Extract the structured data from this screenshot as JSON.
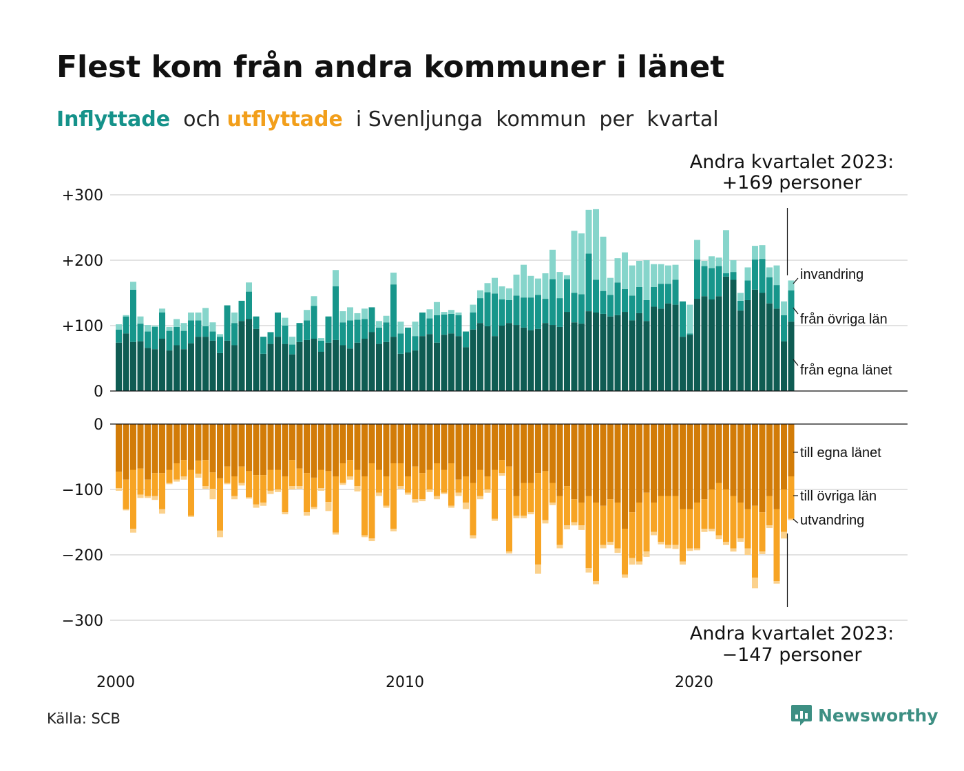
{
  "title": "Flest kom från andra kommuner i länet",
  "subtitle": {
    "part1": "Inflyttade",
    "part2": "  och ",
    "part3": "utflyttade",
    "part4": "  i Svenljunga  kommun  per  kvartal"
  },
  "colors": {
    "in_egna": "#0f5c53",
    "in_ovriga": "#17968b",
    "in_invandring": "#86d5cb",
    "out_egna": "#d27c08",
    "out_ovriga": "#f7a424",
    "out_utvandring": "#fbd18c",
    "brand": "#3d8f83"
  },
  "source": "Källa: SCB",
  "brand": {
    "name": "Newsworthy",
    "icon": "newsworthy-logo-icon"
  },
  "chart_data": {
    "type": "bar",
    "x_start": "2000 Q1",
    "x_end": "2023 Q2",
    "x_ticks": [
      "2000",
      "2010",
      "2020"
    ],
    "y_ticks_top": [
      "+300",
      "+200",
      "+100",
      "0"
    ],
    "y_ticks_bottom": [
      "0",
      "−100",
      "−200",
      "−300"
    ],
    "ylim_top": [
      0,
      300
    ],
    "ylim_bottom": [
      -300,
      0
    ],
    "grid": true,
    "legend_top": [
      "invandring",
      "från övriga län",
      "från egna länet"
    ],
    "legend_bottom": [
      "till egna länet",
      "till övriga län",
      "utvandring"
    ],
    "annotation_top": {
      "line1": "Andra kvartalet 2023:",
      "line2": "+169 personer"
    },
    "annotation_bottom": {
      "line1": "Andra kvartalet 2023:",
      "line2": "−147 personer"
    },
    "inflyttade": {
      "egna_lanet": [
        74,
        88,
        75,
        76,
        66,
        64,
        80,
        62,
        70,
        64,
        73,
        83,
        83,
        77,
        58,
        77,
        70,
        107,
        110,
        95,
        57,
        72,
        83,
        72,
        56,
        75,
        78,
        80,
        60,
        74,
        78,
        70,
        65,
        74,
        80,
        90,
        72,
        75,
        83,
        57,
        59,
        62,
        84,
        87,
        74,
        86,
        88,
        84,
        67,
        94,
        104,
        99,
        84,
        100,
        104,
        101,
        97,
        93,
        95,
        104,
        101,
        98,
        121,
        105,
        103,
        122,
        120,
        118,
        114,
        116,
        121,
        108,
        119,
        107,
        129,
        126,
        134,
        132,
        83,
        86,
        141,
        145,
        140,
        145,
        175,
        170,
        123,
        139,
        155,
        150,
        134,
        126,
        76,
        106
      ],
      "ovriga_lan": [
        20,
        26,
        80,
        27,
        25,
        34,
        40,
        30,
        28,
        28,
        35,
        25,
        16,
        14,
        25,
        54,
        34,
        31,
        42,
        19,
        26,
        18,
        37,
        28,
        15,
        29,
        30,
        50,
        17,
        40,
        82,
        35,
        43,
        35,
        30,
        38,
        25,
        30,
        80,
        31,
        38,
        22,
        36,
        24,
        42,
        31,
        30,
        32,
        24,
        26,
        38,
        52,
        65,
        40,
        35,
        45,
        46,
        50,
        52,
        37,
        70,
        44,
        50,
        45,
        45,
        88,
        50,
        35,
        33,
        50,
        35,
        38,
        40,
        32,
        30,
        38,
        30,
        38,
        54,
        2,
        60,
        46,
        48,
        46,
        5,
        12,
        15,
        30,
        46,
        52,
        40,
        36,
        40,
        48
      ],
      "invandring": [
        8,
        2,
        12,
        11,
        10,
        2,
        6,
        6,
        12,
        12,
        12,
        12,
        28,
        14,
        4,
        0,
        16,
        0,
        14,
        0,
        0,
        0,
        0,
        12,
        12,
        0,
        16,
        15,
        4,
        0,
        25,
        17,
        20,
        10,
        16,
        0,
        10,
        10,
        18,
        18,
        0,
        22,
        0,
        14,
        20,
        4,
        6,
        4,
        0,
        12,
        12,
        14,
        24,
        20,
        18,
        32,
        50,
        33,
        25,
        39,
        45,
        40,
        6,
        95,
        93,
        67,
        108,
        83,
        26,
        37,
        56,
        46,
        40,
        61,
        35,
        30,
        28,
        23,
        0,
        44,
        30,
        8,
        18,
        13,
        66,
        18,
        12,
        20,
        21,
        21,
        15,
        30,
        21,
        15
      ]
    },
    "utflyttade": {
      "egna_lanet": [
        -73,
        -85,
        -70,
        -68,
        -85,
        -75,
        -75,
        -70,
        -60,
        -55,
        -70,
        -56,
        -55,
        -74,
        -83,
        -65,
        -80,
        -65,
        -72,
        -78,
        -78,
        -70,
        -70,
        -80,
        -55,
        -68,
        -75,
        -82,
        -70,
        -72,
        -80,
        -60,
        -55,
        -70,
        -80,
        -60,
        -70,
        -80,
        -60,
        -60,
        -80,
        -65,
        -75,
        -70,
        -60,
        -70,
        -60,
        -85,
        -80,
        -90,
        -70,
        -80,
        -70,
        -55,
        -65,
        -110,
        -90,
        -90,
        -75,
        -72,
        -90,
        -110,
        -95,
        -115,
        -120,
        -110,
        -120,
        -125,
        -115,
        -120,
        -160,
        -135,
        -120,
        -105,
        -120,
        -110,
        -110,
        -110,
        -130,
        -130,
        -120,
        -115,
        -100,
        -90,
        -100,
        -110,
        -120,
        -130,
        -125,
        -135,
        -110,
        -130,
        -100,
        -80
      ],
      "ovriga_lan": [
        -25,
        -45,
        -90,
        -40,
        -25,
        -35,
        -55,
        -20,
        -25,
        -25,
        -70,
        -20,
        -40,
        -25,
        -80,
        -25,
        -30,
        -25,
        -40,
        -45,
        -42,
        -32,
        -30,
        -55,
        -40,
        -27,
        -60,
        -45,
        -28,
        -47,
        -86,
        -30,
        -25,
        -25,
        -90,
        -115,
        -35,
        -45,
        -100,
        -35,
        -25,
        -50,
        -40,
        -30,
        -50,
        -35,
        -65,
        -20,
        -40,
        -80,
        -40,
        -20,
        -75,
        -20,
        -130,
        -30,
        -50,
        -45,
        -140,
        -75,
        -30,
        -75,
        -60,
        -35,
        -35,
        -110,
        -120,
        -60,
        -65,
        -70,
        -70,
        -70,
        -90,
        -90,
        -45,
        -70,
        -75,
        -75,
        -80,
        -60,
        -70,
        -45,
        -60,
        -80,
        -80,
        -80,
        -55,
        -60,
        -110,
        -60,
        -45,
        -110,
        -65,
        -65
      ],
      "utvandring": [
        -4,
        -2,
        -6,
        -5,
        -3,
        -6,
        -7,
        -2,
        -3,
        -5,
        -2,
        -6,
        -4,
        -16,
        -10,
        -2,
        -5,
        -4,
        -2,
        -5,
        -5,
        -5,
        -4,
        -3,
        -5,
        -4,
        -5,
        -3,
        -4,
        -14,
        -3,
        -3,
        -5,
        -8,
        -3,
        -4,
        -5,
        -3,
        -4,
        -4,
        -3,
        -5,
        -3,
        -4,
        -5,
        -2,
        -3,
        -5,
        -10,
        -5,
        -5,
        -5,
        -3,
        -4,
        -3,
        -4,
        -4,
        -3,
        -14,
        -5,
        -4,
        -5,
        -6,
        -5,
        -7,
        -7,
        -5,
        -5,
        -5,
        -7,
        -5,
        -10,
        -5,
        -8,
        -5,
        -4,
        -5,
        -6,
        -5,
        -4,
        -3,
        -5,
        -4,
        -6,
        -5,
        -5,
        -5,
        -10,
        -16,
        -4,
        -4,
        -4,
        -10,
        -2
      ]
    }
  }
}
